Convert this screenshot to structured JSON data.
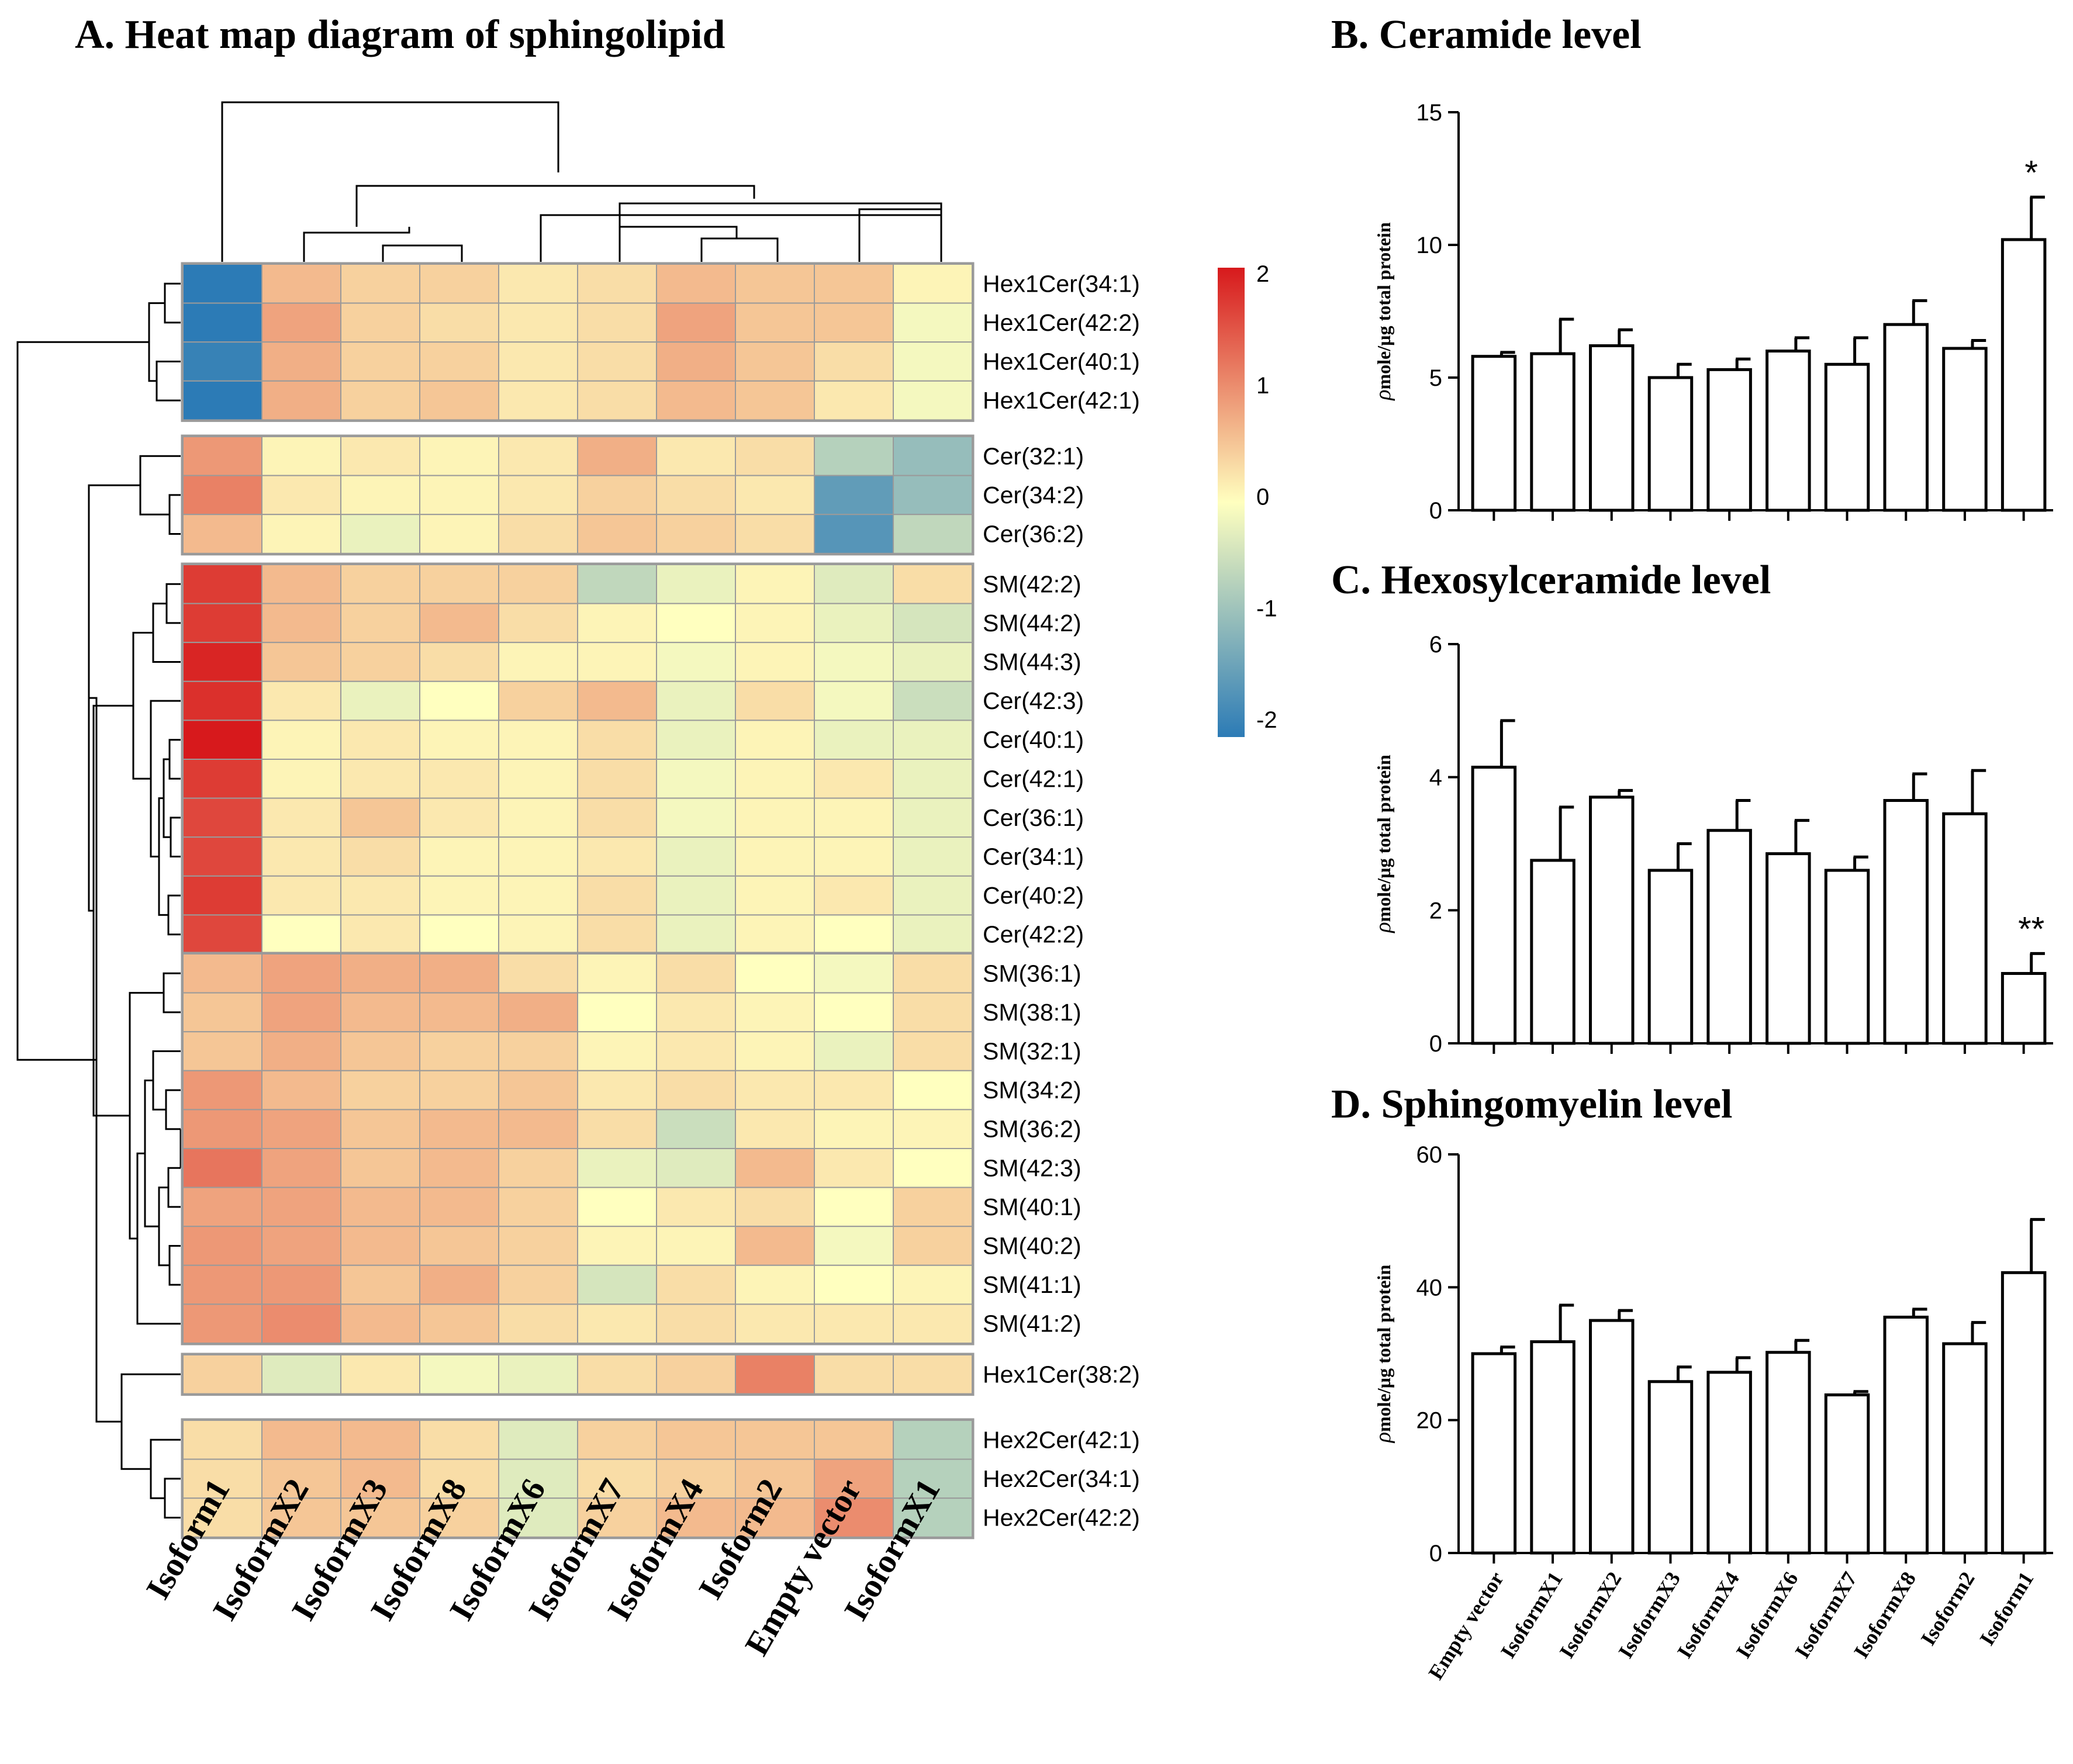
{
  "chart_data": [
    {
      "type": "heatmap",
      "title": "A. Heat map diagram of sphingolipid",
      "columns": [
        "Isoform1",
        "IsoformX2",
        "IsoformX3",
        "IsoformX8",
        "IsoformX6",
        "IsoformX7",
        "IsoformX4",
        "Isoform2",
        "Empty vector",
        "IsoformX1"
      ],
      "row_groups": [
        {
          "rows": [
            "Hex1Cer(34:1)",
            "Hex1Cer(42:2)",
            "Hex1Cer(40:1)",
            "Hex1Cer(42:1)"
          ],
          "values": [
            [
              -2.2,
              0.6,
              0.4,
              0.4,
              0.2,
              0.3,
              0.6,
              0.5,
              0.5,
              0.1
            ],
            [
              -2.1,
              0.8,
              0.4,
              0.3,
              0.2,
              0.3,
              0.8,
              0.5,
              0.5,
              -0.1
            ],
            [
              -1.9,
              0.7,
              0.4,
              0.4,
              0.2,
              0.3,
              0.7,
              0.5,
              0.3,
              -0.1
            ],
            [
              -2.5,
              0.7,
              0.4,
              0.5,
              0.2,
              0.3,
              0.6,
              0.5,
              0.2,
              -0.1
            ]
          ]
        },
        {
          "rows": [
            "Cer(32:1)",
            "Cer(34:2)",
            "Cer(36:2)"
          ],
          "values": [
            [
              0.9,
              0.1,
              0.2,
              0.1,
              0.2,
              0.7,
              0.2,
              0.3,
              -0.7,
              -1.0
            ],
            [
              1.1,
              0.2,
              0.1,
              0.1,
              0.2,
              0.4,
              0.3,
              0.2,
              -1.5,
              -1.0
            ],
            [
              0.6,
              0.1,
              -0.2,
              0.1,
              0.3,
              0.5,
              0.4,
              0.3,
              -1.6,
              -0.6
            ]
          ]
        },
        {
          "rows": [
            "SM(42:2)",
            "SM(44:2)",
            "SM(44:3)",
            "Cer(42:3)",
            "Cer(40:1)",
            "Cer(42:1)",
            "Cer(36:1)",
            "Cer(34:1)",
            "Cer(40:2)",
            "Cer(42:2)"
          ],
          "values": [
            [
              1.7,
              0.6,
              0.4,
              0.4,
              0.4,
              -0.6,
              -0.2,
              0.1,
              -0.3,
              0.3
            ],
            [
              1.7,
              0.6,
              0.4,
              0.6,
              0.3,
              0.1,
              0.0,
              0.1,
              -0.2,
              -0.4
            ],
            [
              1.9,
              0.5,
              0.4,
              0.3,
              0.1,
              0.1,
              -0.1,
              0.1,
              -0.1,
              -0.2
            ],
            [
              1.8,
              0.2,
              -0.2,
              0.0,
              0.4,
              0.6,
              -0.2,
              0.3,
              -0.1,
              -0.5
            ],
            [
              2.0,
              0.1,
              0.2,
              0.1,
              0.1,
              0.3,
              -0.2,
              0.1,
              -0.2,
              -0.2
            ],
            [
              1.7,
              0.1,
              0.2,
              0.2,
              0.1,
              0.3,
              -0.1,
              0.1,
              0.2,
              -0.2
            ],
            [
              1.6,
              0.2,
              0.5,
              0.2,
              0.1,
              0.3,
              -0.1,
              0.1,
              0.1,
              -0.2
            ],
            [
              1.6,
              0.2,
              0.3,
              0.1,
              0.1,
              0.2,
              -0.2,
              0.1,
              0.1,
              -0.2
            ],
            [
              1.7,
              0.2,
              0.2,
              0.1,
              0.1,
              0.3,
              -0.2,
              0.1,
              0.2,
              -0.2
            ],
            [
              1.6,
              0.0,
              0.2,
              0.0,
              0.1,
              0.3,
              -0.2,
              0.1,
              0.0,
              -0.2
            ]
          ]
        },
        {
          "rows": [
            "SM(36:1)",
            "SM(38:1)",
            "SM(32:1)",
            "SM(34:2)",
            "SM(36:2)",
            "SM(42:3)",
            "SM(40:1)",
            "SM(40:2)",
            "SM(41:1)",
            "SM(41:2)"
          ],
          "values": [
            [
              0.6,
              0.8,
              0.7,
              0.7,
              0.3,
              0.1,
              0.3,
              0.0,
              -0.1,
              0.3
            ],
            [
              0.5,
              0.8,
              0.6,
              0.6,
              0.7,
              0.0,
              0.2,
              0.1,
              0.0,
              0.3
            ],
            [
              0.5,
              0.7,
              0.5,
              0.4,
              0.4,
              0.1,
              0.2,
              0.1,
              -0.2,
              0.3
            ],
            [
              0.9,
              0.6,
              0.4,
              0.4,
              0.5,
              0.2,
              0.3,
              0.2,
              0.2,
              0.0
            ],
            [
              0.9,
              0.8,
              0.5,
              0.6,
              0.6,
              0.3,
              -0.5,
              0.2,
              0.1,
              0.1
            ],
            [
              1.2,
              0.8,
              0.5,
              0.6,
              0.4,
              -0.2,
              -0.3,
              0.6,
              0.2,
              0.0
            ],
            [
              0.8,
              0.8,
              0.6,
              0.6,
              0.4,
              0.0,
              0.2,
              0.3,
              0.0,
              0.4
            ],
            [
              0.9,
              0.8,
              0.6,
              0.5,
              0.4,
              0.1,
              0.1,
              0.6,
              -0.1,
              0.4
            ],
            [
              0.9,
              0.9,
              0.5,
              0.7,
              0.4,
              -0.4,
              0.3,
              0.1,
              0.0,
              0.1
            ],
            [
              0.9,
              1.0,
              0.6,
              0.5,
              0.3,
              0.2,
              0.3,
              0.2,
              0.2,
              0.2
            ]
          ]
        },
        {
          "rows": [
            "Hex1Cer(38:2)"
          ],
          "values": [
            [
              0.4,
              -0.3,
              0.2,
              -0.1,
              -0.2,
              0.3,
              0.4,
              1.1,
              0.3,
              0.3
            ]
          ]
        },
        {
          "rows": [
            "Hex2Cer(42:1)",
            "Hex2Cer(34:1)",
            "Hex2Cer(42:2)"
          ],
          "values": [
            [
              0.3,
              0.6,
              0.6,
              0.3,
              -0.3,
              0.4,
              0.5,
              0.5,
              0.5,
              -0.7
            ],
            [
              0.3,
              0.5,
              0.6,
              0.3,
              -0.3,
              0.3,
              0.4,
              0.5,
              0.8,
              -0.7
            ],
            [
              0.3,
              0.5,
              0.5,
              0.4,
              -0.3,
              0.4,
              0.6,
              0.6,
              1.0,
              -0.7
            ]
          ]
        }
      ],
      "colorbar": {
        "min": -2,
        "max": 2,
        "ticks": [
          "2",
          "1",
          "0",
          "-1",
          "-2"
        ],
        "low_color": "#2c7bb6",
        "mid_color": "#ffffbf",
        "high_color": "#d7191c"
      }
    },
    {
      "type": "bar",
      "title": "B. Ceramide level",
      "ylabel_symbol": "ρ",
      "ylabel": "mole/µg total protein",
      "ylim": [
        0,
        15
      ],
      "yticks": [
        0,
        5,
        10,
        15
      ],
      "ytick_labels": [
        "0",
        "5",
        "10",
        "15"
      ],
      "categories": [
        "Empty vector",
        "IsoformX1",
        "IsoformX2",
        "IsoformX3",
        "IsoformX4",
        "IsoformX6",
        "IsoformX7",
        "IsoformX8",
        "Isoform2",
        "Isoform1"
      ],
      "values": [
        5.8,
        5.9,
        6.2,
        5.0,
        5.3,
        6.0,
        5.5,
        7.0,
        6.1,
        10.2
      ],
      "errors": [
        0.15,
        1.3,
        0.6,
        0.5,
        0.4,
        0.5,
        1.0,
        0.9,
        0.3,
        1.6
      ],
      "annotations": [
        "",
        "",
        "",
        "",
        "",
        "",
        "",
        "",
        "",
        "*"
      ]
    },
    {
      "type": "bar",
      "title": "C. Hexosylceramide level",
      "ylabel_symbol": "ρ",
      "ylabel": "mole/µg total protein",
      "ylim": [
        0,
        6
      ],
      "yticks": [
        0,
        2,
        4,
        6
      ],
      "ytick_labels": [
        "0",
        "2",
        "4",
        "6"
      ],
      "categories": [
        "Empty vector",
        "IsoformX1",
        "IsoformX2",
        "IsoformX3",
        "IsoformX4",
        "IsoformX6",
        "IsoformX7",
        "IsoformX8",
        "Isoform2",
        "Isoform1"
      ],
      "values": [
        4.15,
        2.75,
        3.7,
        2.6,
        3.2,
        2.85,
        2.6,
        3.65,
        3.45,
        1.05
      ],
      "errors": [
        0.7,
        0.8,
        0.1,
        0.4,
        0.45,
        0.5,
        0.2,
        0.4,
        0.65,
        0.3
      ],
      "annotations": [
        "",
        "",
        "",
        "",
        "",
        "",
        "",
        "",
        "",
        "**"
      ]
    },
    {
      "type": "bar",
      "title": "D. Sphingomyelin level",
      "ylabel_symbol": "ρ",
      "ylabel": "mole/µg total protein",
      "ylim": [
        0,
        60
      ],
      "yticks": [
        0,
        20,
        40,
        60
      ],
      "ytick_labels": [
        "0",
        "20",
        "40",
        "60"
      ],
      "categories": [
        "Empty vector",
        "IsoformX1",
        "IsoformX2",
        "IsoformX3",
        "IsoformX4",
        "IsoformX6",
        "IsoformX7",
        "IsoformX8",
        "Isoform2",
        "Isoform1"
      ],
      "values": [
        30.0,
        31.8,
        35.0,
        25.8,
        27.2,
        30.2,
        23.8,
        35.5,
        31.5,
        42.2
      ],
      "errors": [
        1.0,
        5.5,
        1.5,
        2.2,
        2.2,
        1.8,
        0.5,
        1.2,
        3.2,
        8.0
      ],
      "annotations": [
        "",
        "",
        "",
        "",
        "",
        "",
        "",
        "",
        "",
        ""
      ]
    }
  ]
}
